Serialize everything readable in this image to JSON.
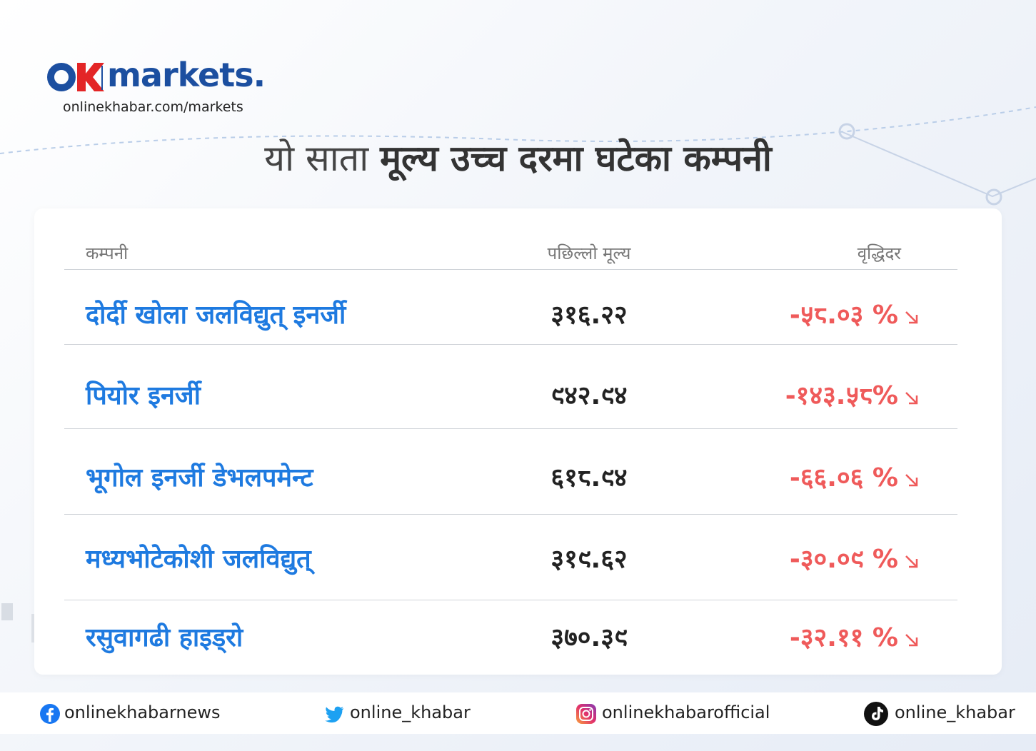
{
  "header": {
    "logo_text": "markets.",
    "url": "onlinekhabar.com/markets",
    "title_light": "यो साता",
    "title_bold": "मूल्य उच्च दरमा घटेका कम्पनी"
  },
  "table": {
    "columns": [
      "कम्पनी",
      "पछिल्लो मूल्य",
      "वृद्धिदर"
    ],
    "rows": [
      [
        "दोर्दी खोला जलविद्युत् इनर्जी",
        "३१६.२२",
        "-५८.०३ %"
      ],
      [
        "पियोर इनर्जी",
        "९४२.९४",
        "-१४३.५८%"
      ],
      [
        "भूगोल इनर्जी डेभलपमेन्ट",
        "६१८.९४",
        "-६६.०६ %"
      ],
      [
        "मध्यभोटेकोशी जलविद्युत्",
        "३१९.६२",
        "-३०.०९ %"
      ],
      [
        "रसुवागढी हाइड्रो",
        "३७०.३९",
        "-३२.११ %"
      ]
    ]
  },
  "footer": {
    "facebook": "onlinekhabarnews",
    "twitter": "online_khabar",
    "instagram": "onlinekhabarofficial",
    "tiktok": "online_khabar"
  }
}
